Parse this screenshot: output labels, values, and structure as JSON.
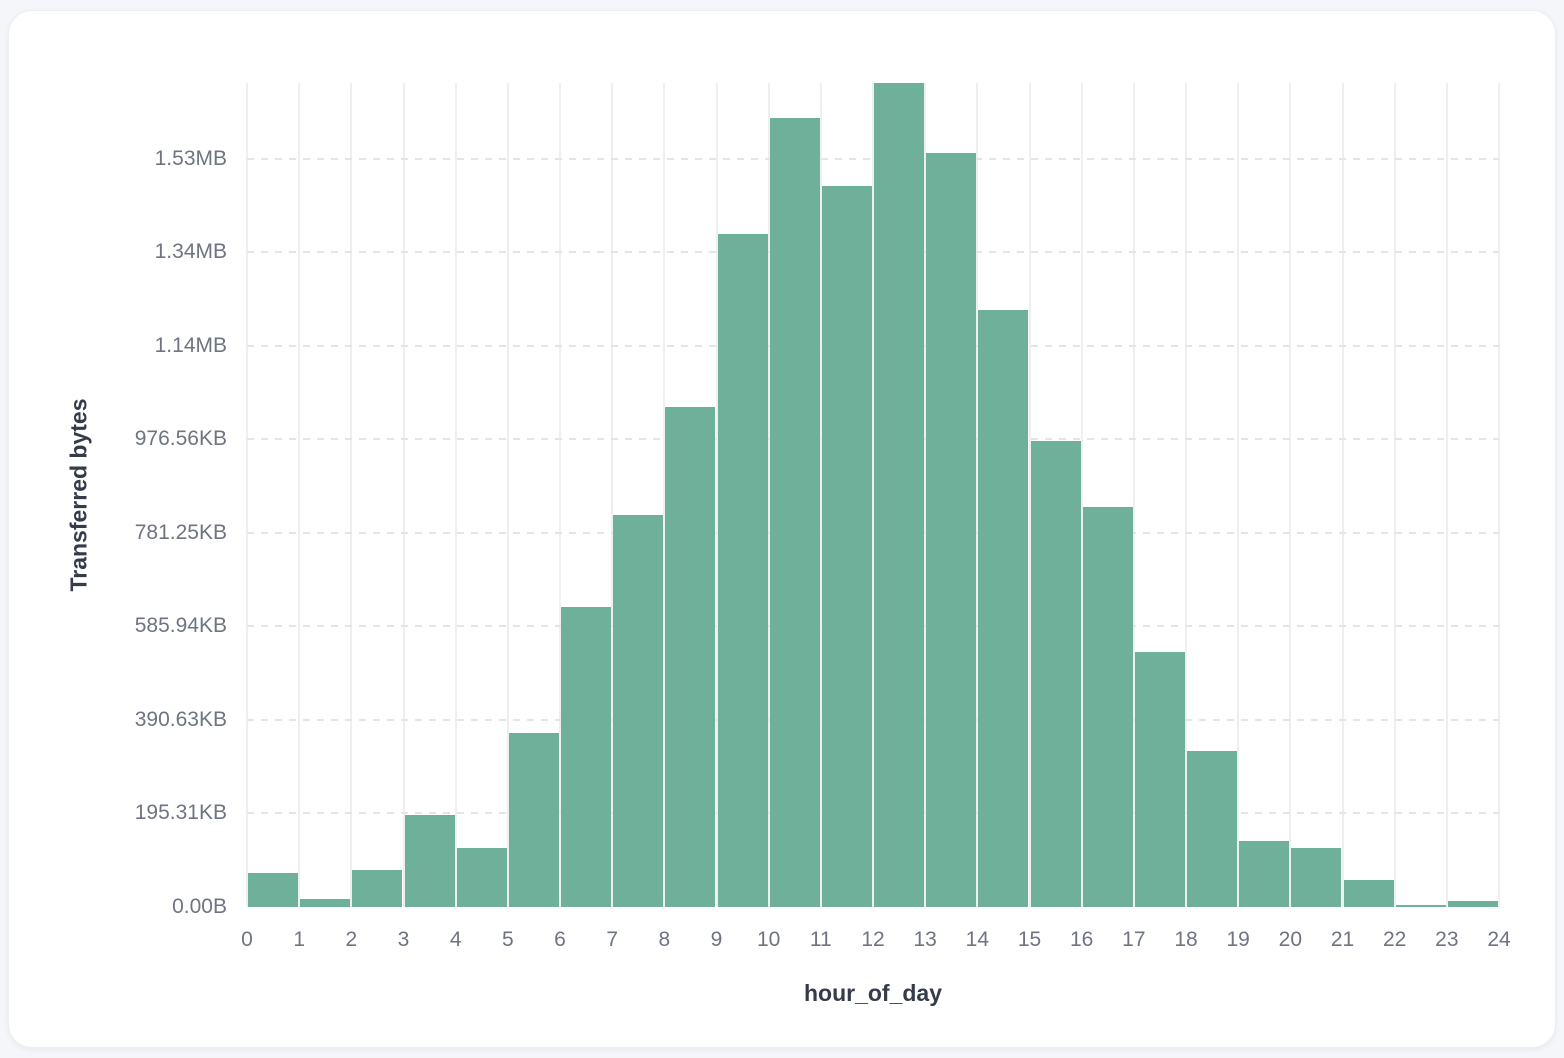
{
  "card": {
    "type": "chart-card"
  },
  "colors": {
    "page_background": "#F4F6F9",
    "card_background": "#FFFFFF",
    "card_border": "#ECEEF2",
    "bar_fill": "#6FB09A",
    "bar_separator": "#FFFFFF",
    "vertical_gridline": "#EEEFF3",
    "horizontal_gridline": "#E3E5EB",
    "tick_label": "#6E7482",
    "axis_title": "#363B4A"
  },
  "chart_data": {
    "type": "bar",
    "subtype": "histogram",
    "title": "",
    "xlabel": "hour_of_day",
    "ylabel": "Transferred bytes",
    "bin_width_hours": 1,
    "categories": [
      0,
      1,
      2,
      3,
      4,
      5,
      6,
      7,
      8,
      9,
      10,
      11,
      12,
      13,
      14,
      15,
      16,
      17,
      18,
      19,
      20,
      21,
      22,
      23
    ],
    "values_bytes": [
      73000,
      17000,
      79000,
      196000,
      126000,
      372000,
      642000,
      838000,
      1070000,
      1440000,
      1688000,
      1542000,
      1762000,
      1613000,
      1277000,
      997000,
      856000,
      545000,
      334000,
      141000,
      126000,
      58000,
      4500,
      13000
    ],
    "xlim": [
      0,
      24
    ],
    "ylim": [
      0,
      1762000
    ],
    "x_ticks": [
      "0",
      "1",
      "2",
      "3",
      "4",
      "5",
      "6",
      "7",
      "8",
      "9",
      "10",
      "11",
      "12",
      "13",
      "14",
      "15",
      "16",
      "17",
      "18",
      "19",
      "20",
      "21",
      "22",
      "23",
      "24"
    ],
    "y_ticks": [
      {
        "label": "0.00B",
        "value": 0
      },
      {
        "label": "195.31KB",
        "value": 200000
      },
      {
        "label": "390.63KB",
        "value": 400000
      },
      {
        "label": "585.94KB",
        "value": 600000
      },
      {
        "label": "781.25KB",
        "value": 800000
      },
      {
        "label": "976.56KB",
        "value": 1000000
      },
      {
        "label": "1.14MB",
        "value": 1200000
      },
      {
        "label": "1.34MB",
        "value": 1400000
      },
      {
        "label": "1.53MB",
        "value": 1600000
      }
    ],
    "grid": "on",
    "legend": "none",
    "horizontal_grid_style": "dashed",
    "vertical_grid_style": "solid"
  }
}
